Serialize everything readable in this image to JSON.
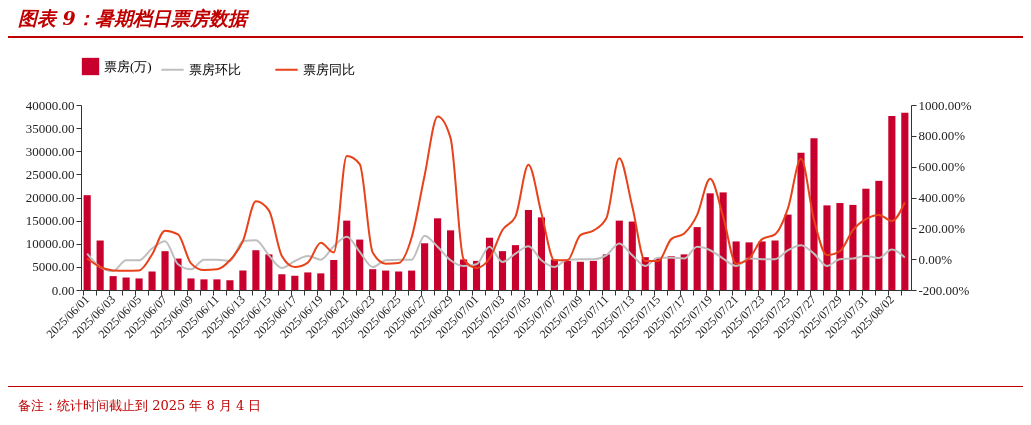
{
  "chart_data": {
    "type": "bar",
    "title": "图表 9：暑期档日票房数据",
    "annotations": [
      "备注：统计时间截止到 2025 年 8 月 4 日"
    ],
    "categories": [
      "2025/06/01",
      null,
      "2025/06/03",
      null,
      "2025/06/05",
      null,
      "2025/06/07",
      null,
      "2025/06/09",
      null,
      "2025/06/11",
      null,
      "2025/06/13",
      null,
      "2025/06/15",
      null,
      "2025/06/17",
      null,
      "2025/06/19",
      null,
      "2025/06/21",
      null,
      "2025/06/23",
      null,
      "2025/06/25",
      null,
      "2025/06/27",
      null,
      "2025/06/29",
      null,
      "2025/07/01",
      null,
      "2025/07/03",
      null,
      "2025/07/05",
      null,
      "2025/07/07",
      null,
      "2025/07/09",
      null,
      "2025/07/11",
      null,
      "2025/07/13",
      null,
      "2025/07/15",
      null,
      "2025/07/17",
      null,
      "2025/07/19",
      null,
      "2025/07/21",
      null,
      "2025/07/23",
      null,
      "2025/07/25",
      null,
      "2025/07/27",
      null,
      "2025/07/29",
      null,
      "2025/07/31",
      null,
      "2025/08/02",
      null
    ],
    "series": [
      {
        "name": "票房(万)",
        "color": "#c8002d",
        "values": [
          20500,
          10700,
          3000,
          2700,
          2500,
          4000,
          8400,
          6800,
          2500,
          2300,
          2300,
          2100,
          4200,
          8600,
          7700,
          3400,
          3100,
          3800,
          3600,
          6500,
          15000,
          10900,
          4500,
          4200,
          4000,
          4200,
          10100,
          15500,
          12900,
          6600,
          6300,
          11300,
          8400,
          9700,
          17300,
          15700,
          6600,
          6300,
          6100,
          6300,
          7700,
          15000,
          14800,
          7100,
          6900,
          7300,
          7700,
          13600,
          20900,
          21100,
          10500,
          10300,
          10500,
          10700,
          16300,
          29700,
          32800,
          18300,
          18800,
          18400,
          21900,
          23600,
          37600,
          38300
        ]
      },
      {
        "name": "票房环比",
        "type": "line",
        "axis": "y2",
        "color": "#bfbfbf",
        "values": [
          36,
          -51,
          -77,
          -7,
          -7,
          69,
          117,
          -33,
          -66,
          -3,
          -3,
          -12,
          117,
          123,
          25,
          -57,
          -12,
          21,
          -3,
          84,
          145,
          47,
          -51,
          -7,
          -3,
          -3,
          152,
          80,
          -7,
          -44,
          -33,
          80,
          -18,
          36,
          84,
          -7,
          -51,
          -3,
          0,
          0,
          25,
          102,
          25,
          -44,
          10,
          10,
          4,
          80,
          58,
          4,
          -44,
          4,
          0,
          0,
          58,
          91,
          36,
          -44,
          0,
          4,
          21,
          8,
          62,
          10
        ]
      },
      {
        "name": "票房同比",
        "type": "line",
        "axis": "y2",
        "color": "#e8421a",
        "values": [
          4,
          -51,
          -73,
          -75,
          -73,
          30,
          185,
          161,
          -27,
          -71,
          -66,
          -7,
          117,
          375,
          316,
          21,
          -51,
          -22,
          106,
          43,
          669,
          617,
          43,
          -29,
          -25,
          141,
          543,
          925,
          785,
          0,
          -57,
          4,
          189,
          276,
          612,
          298,
          -7,
          -7,
          156,
          185,
          265,
          654,
          342,
          -12,
          -12,
          130,
          167,
          287,
          521,
          276,
          -29,
          4,
          130,
          161,
          331,
          651,
          255,
          26,
          52,
          189,
          259,
          287,
          248,
          368
        ]
      }
    ],
    "ylim": [
      0,
      40000
    ],
    "yticks": [
      {
        "value": 0,
        "label": "0.00"
      },
      {
        "value": 5000,
        "label": "5000.00"
      },
      {
        "value": 10000,
        "label": "10000.00"
      },
      {
        "value": 15000,
        "label": "15000.00"
      },
      {
        "value": 20000,
        "label": "20000.00"
      },
      {
        "value": 25000,
        "label": "25000.00"
      },
      {
        "value": 30000,
        "label": "30000.00"
      },
      {
        "value": 35000,
        "label": "35000.00"
      },
      {
        "value": 40000,
        "label": "40000.00"
      }
    ],
    "y2lim": [
      -200,
      1000
    ],
    "y2ticks": [
      {
        "value": -200,
        "label": "-200.00%"
      },
      {
        "value": 0,
        "label": "0.00%"
      },
      {
        "value": 200,
        "label": "200.00%"
      },
      {
        "value": 400,
        "label": "400.00%"
      },
      {
        "value": 600,
        "label": "600.00%"
      },
      {
        "value": 800,
        "label": "800.00%"
      },
      {
        "value": 1000,
        "label": "1000.00%"
      }
    ],
    "legend": "top"
  }
}
